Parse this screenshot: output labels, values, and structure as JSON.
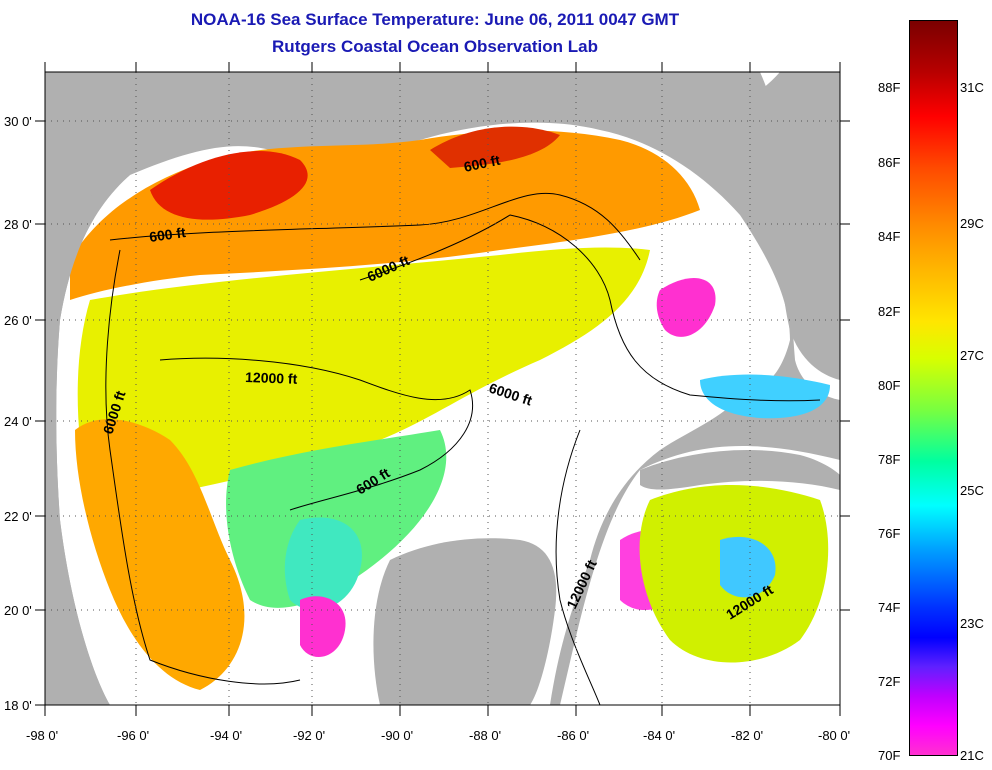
{
  "header": {
    "title": "NOAA-16 Sea Surface Temperature:  June 06, 2011 0047 GMT",
    "subtitle": "Rutgers Coastal Ocean Observation Lab"
  },
  "map": {
    "lat_labels": [
      "30 0'",
      "28 0'",
      "26 0'",
      "24 0'",
      "22 0'",
      "20 0'",
      "18 0'"
    ],
    "lon_labels": [
      "-98 0'",
      "-96 0'",
      "-94 0'",
      "-92 0'",
      "-90 0'",
      "-88 0'",
      "-86 0'",
      "-84 0'",
      "-82 0'",
      "-80 0'"
    ],
    "contour_labels": [
      "600 ft",
      "600 ft",
      "600 ft",
      "6000 ft",
      "6000 ft",
      "6000 ft",
      "12000 ft",
      "12000 ft",
      "12000 ft"
    ],
    "colors": {
      "land": "#b0b0b0",
      "no_data": "#ffffff"
    }
  },
  "colorbar": {
    "fahrenheit": [
      "88F",
      "86F",
      "84F",
      "82F",
      "80F",
      "78F",
      "76F",
      "74F",
      "72F",
      "70F"
    ],
    "celsius": [
      "31C",
      "29C",
      "27C",
      "25C",
      "23C",
      "21C"
    ],
    "range_f": [
      70,
      90
    ]
  }
}
